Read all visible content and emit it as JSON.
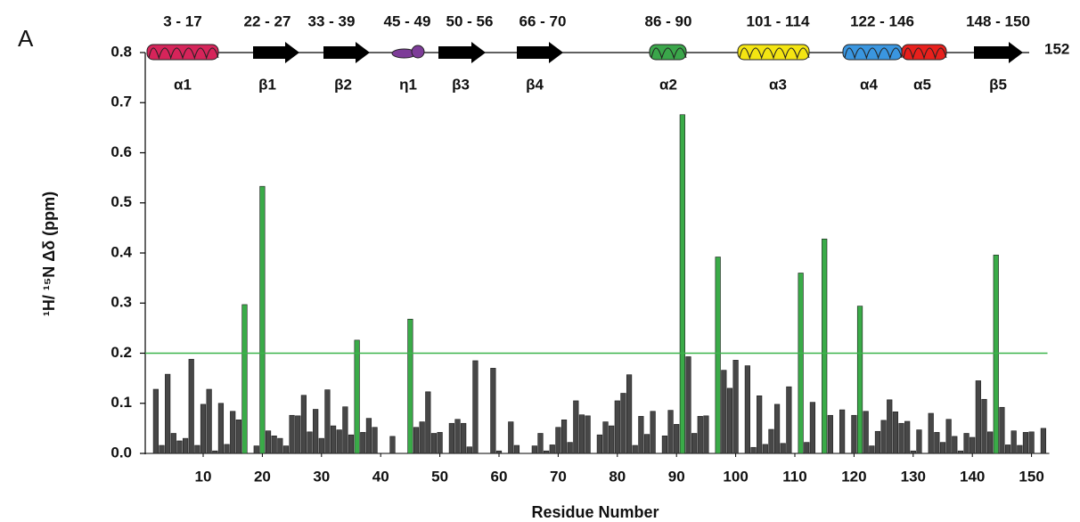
{
  "panel_label": "A",
  "chart_data": {
    "type": "bar",
    "xlabel": "Residue Number",
    "ylabel": "¹H/ ¹⁵N Δδ (ppm)",
    "x": [
      2,
      3,
      4,
      5,
      6,
      7,
      8,
      9,
      10,
      11,
      12,
      13,
      14,
      15,
      16,
      17,
      19,
      20,
      21,
      22,
      23,
      24,
      25,
      26,
      27,
      28,
      29,
      30,
      31,
      32,
      33,
      34,
      35,
      36,
      37,
      38,
      39,
      42,
      45,
      46,
      47,
      48,
      49,
      50,
      52,
      53,
      54,
      55,
      56,
      59,
      60,
      62,
      63,
      66,
      67,
      68,
      69,
      70,
      71,
      72,
      73,
      74,
      75,
      77,
      78,
      79,
      80,
      81,
      82,
      83,
      84,
      85,
      86,
      88,
      89,
      90,
      91,
      92,
      93,
      94,
      95,
      97,
      98,
      99,
      100,
      102,
      103,
      104,
      105,
      106,
      107,
      108,
      109,
      111,
      112,
      113,
      115,
      116,
      118,
      120,
      121,
      122,
      123,
      124,
      125,
      126,
      127,
      128,
      129,
      130,
      131,
      133,
      134,
      135,
      136,
      137,
      138,
      139,
      140,
      141,
      142,
      143,
      144,
      145,
      146,
      147,
      148,
      149,
      150,
      152
    ],
    "values": [
      0.128,
      0.016,
      0.158,
      0.04,
      0.025,
      0.03,
      0.188,
      0.016,
      0.098,
      0.128,
      0.005,
      0.1,
      0.018,
      0.084,
      0.067,
      0.297,
      0.015,
      0.533,
      0.045,
      0.035,
      0.03,
      0.015,
      0.076,
      0.075,
      0.116,
      0.043,
      0.088,
      0.03,
      0.127,
      0.055,
      0.047,
      0.093,
      0.037,
      0.226,
      0.042,
      0.07,
      0.052,
      0.034,
      0.268,
      0.052,
      0.063,
      0.123,
      0.04,
      0.042,
      0.06,
      0.068,
      0.06,
      0.013,
      0.185,
      0.17,
      0.005,
      0.063,
      0.016,
      0.015,
      0.04,
      0.005,
      0.017,
      0.052,
      0.067,
      0.022,
      0.105,
      0.077,
      0.075,
      0.037,
      0.063,
      0.055,
      0.105,
      0.12,
      0.157,
      0.016,
      0.074,
      0.038,
      0.084,
      0.035,
      0.086,
      0.058,
      0.676,
      0.193,
      0.04,
      0.074,
      0.075,
      0.392,
      0.166,
      0.13,
      0.186,
      0.175,
      0.012,
      0.115,
      0.018,
      0.048,
      0.098,
      0.02,
      0.133,
      0.36,
      0.022,
      0.102,
      0.428,
      0.076,
      0.087,
      0.076,
      0.294,
      0.084,
      0.015,
      0.044,
      0.066,
      0.107,
      0.083,
      0.06,
      0.064,
      0.005,
      0.047,
      0.08,
      0.042,
      0.022,
      0.068,
      0.034,
      0.005,
      0.04,
      0.032,
      0.145,
      0.108,
      0.043,
      0.396,
      0.092,
      0.017,
      0.045,
      0.016,
      0.042,
      0.043,
      0.05
    ],
    "colors": [
      "#474747",
      "#474747",
      "#474747",
      "#474747",
      "#474747",
      "#474747",
      "#474747",
      "#474747",
      "#474747",
      "#474747",
      "#474747",
      "#474747",
      "#474747",
      "#474747",
      "#474747",
      "#3aab48",
      "#474747",
      "#3aab48",
      "#474747",
      "#474747",
      "#474747",
      "#474747",
      "#474747",
      "#474747",
      "#474747",
      "#474747",
      "#474747",
      "#474747",
      "#474747",
      "#474747",
      "#474747",
      "#474747",
      "#474747",
      "#3aab48",
      "#474747",
      "#474747",
      "#474747",
      "#474747",
      "#3aab48",
      "#474747",
      "#474747",
      "#474747",
      "#474747",
      "#474747",
      "#474747",
      "#474747",
      "#474747",
      "#474747",
      "#474747",
      "#474747",
      "#474747",
      "#474747",
      "#474747",
      "#474747",
      "#474747",
      "#474747",
      "#474747",
      "#474747",
      "#474747",
      "#474747",
      "#474747",
      "#474747",
      "#474747",
      "#474747",
      "#474747",
      "#474747",
      "#474747",
      "#474747",
      "#474747",
      "#474747",
      "#474747",
      "#474747",
      "#474747",
      "#474747",
      "#474747",
      "#474747",
      "#3aab48",
      "#474747",
      "#474747",
      "#474747",
      "#474747",
      "#3aab48",
      "#474747",
      "#474747",
      "#474747",
      "#474747",
      "#474747",
      "#474747",
      "#474747",
      "#474747",
      "#474747",
      "#474747",
      "#474747",
      "#3aab48",
      "#474747",
      "#474747",
      "#3aab48",
      "#474747",
      "#474747",
      "#474747",
      "#3aab48",
      "#474747",
      "#474747",
      "#474747",
      "#474747",
      "#474747",
      "#474747",
      "#474747",
      "#474747",
      "#474747",
      "#474747",
      "#474747",
      "#474747",
      "#474747",
      "#474747",
      "#474747",
      "#474747",
      "#474747",
      "#474747",
      "#474747",
      "#474747",
      "#474747",
      "#3aab48",
      "#474747",
      "#474747",
      "#474747",
      "#474747",
      "#474747",
      "#474747",
      "#474747"
    ],
    "xlim": [
      0,
      153
    ],
    "xticks": [
      10,
      20,
      30,
      40,
      50,
      60,
      70,
      80,
      90,
      100,
      110,
      120,
      130,
      140,
      150
    ],
    "ylim": [
      0,
      0.8
    ],
    "yticks": [
      {
        "value": 0,
        "label": "0.0"
      },
      0.1,
      0.2,
      0.3,
      0.4,
      0.5,
      0.6,
      0.7,
      0.8
    ],
    "threshold": 0.2,
    "threshold_color": "#3cb44b",
    "grid": false
  },
  "structure": {
    "end_label": "152",
    "elements": [
      {
        "name": "α1",
        "range": "3 - 17",
        "kind": "helix",
        "color": "#d6245a"
      },
      {
        "name": "β1",
        "range": "22 - 27",
        "kind": "strand",
        "color": "#000000"
      },
      {
        "name": "β2",
        "range": "33 - 39",
        "kind": "strand",
        "color": "#000000"
      },
      {
        "name": "η1",
        "range": "45 - 49",
        "kind": "eta",
        "color": "#7d3c98"
      },
      {
        "name": "β3",
        "range": "50 - 56",
        "kind": "strand",
        "color": "#000000"
      },
      {
        "name": "β4",
        "range": "66 - 70",
        "kind": "strand",
        "color": "#000000"
      },
      {
        "name": "α2",
        "range": "86 - 90",
        "kind": "helix",
        "color": "#3aa64a"
      },
      {
        "name": "α3",
        "range": "101 - 114",
        "kind": "helix",
        "color": "#f4e512"
      },
      {
        "name": "α4",
        "range": "122 - 146",
        "kind": "helix",
        "color": "#3a96e0"
      },
      {
        "name": "α5",
        "kind": "helix",
        "color": "#e8201c"
      },
      {
        "name": "β5",
        "range": "148 - 150",
        "kind": "strand",
        "color": "#000000"
      }
    ]
  }
}
